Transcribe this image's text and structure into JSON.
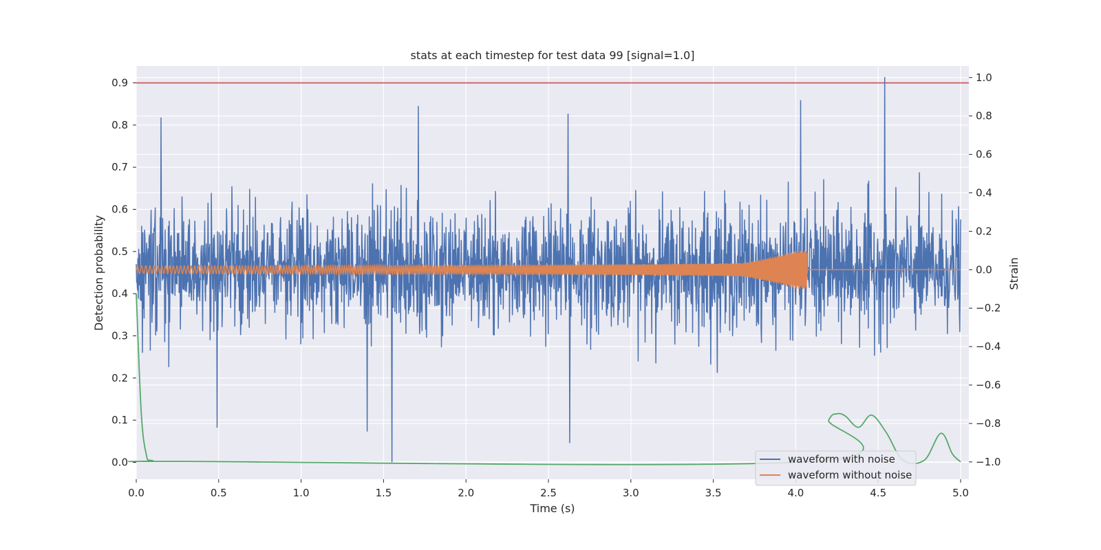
{
  "chart_data": {
    "type": "line",
    "title": "stats at each timestep for test data 99 [signal=1.0]",
    "xlabel": "Time (s)",
    "ylabel": "Detection probability",
    "y2label": "Strain",
    "xlim": [
      0.0,
      5.05
    ],
    "ylim": [
      -0.04,
      0.94
    ],
    "y2lim": [
      -1.09,
      1.06
    ],
    "xticks": [
      "0.0",
      "0.5",
      "1.0",
      "1.5",
      "2.0",
      "2.5",
      "3.0",
      "3.5",
      "4.0",
      "4.5",
      "5.0"
    ],
    "yticks": [
      "0.0",
      "0.1",
      "0.2",
      "0.3",
      "0.4",
      "0.5",
      "0.6",
      "0.7",
      "0.8",
      "0.9"
    ],
    "y2ticks": [
      "−1.0",
      "−0.8",
      "−0.6",
      "−0.4",
      "−0.2",
      "0.0",
      "0.2",
      "0.4",
      "0.6",
      "0.8",
      "1.0"
    ],
    "grid": true,
    "legend_position": "lower-right",
    "threshold": {
      "y": 0.9,
      "color": "#c44e52"
    },
    "series": [
      {
        "name": "waveform with noise",
        "axis": "right",
        "color": "#4c72b0",
        "x_range": [
          0.0,
          5.0
        ],
        "amplitude_typical": 0.4,
        "peaks": [
          {
            "x": 0.15,
            "y": 0.79
          },
          {
            "x": 1.71,
            "y": 0.85
          },
          {
            "x": 4.03,
            "y": 0.88
          },
          {
            "x": 4.54,
            "y": 1.0
          },
          {
            "x": 2.62,
            "y": 0.81
          },
          {
            "x": 1.55,
            "y": -1.0
          },
          {
            "x": 2.63,
            "y": -0.9
          },
          {
            "x": 0.49,
            "y": -0.82
          },
          {
            "x": 1.4,
            "y": -0.84
          }
        ]
      },
      {
        "name": "waveform without noise",
        "axis": "right",
        "color": "#dd8452",
        "x_range": [
          0.0,
          5.0
        ],
        "merger_time": 4.07,
        "amplitude_start": 0.02,
        "amplitude_peak": 0.1
      },
      {
        "name": "",
        "axis": "left",
        "color": "#55a868",
        "points": [
          {
            "x": 0.0,
            "y": 0.4
          },
          {
            "x": 0.03,
            "y": 0.12
          },
          {
            "x": 0.06,
            "y": 0.02
          },
          {
            "x": 0.1,
            "y": 0.004
          },
          {
            "x": 0.3,
            "y": 0.002
          },
          {
            "x": 4.1,
            "y": 0.002
          },
          {
            "x": 4.2,
            "y": 0.1
          },
          {
            "x": 4.25,
            "y": 0.115
          },
          {
            "x": 4.3,
            "y": 0.11
          },
          {
            "x": 4.38,
            "y": 0.083
          },
          {
            "x": 4.46,
            "y": 0.112
          },
          {
            "x": 4.55,
            "y": 0.07
          },
          {
            "x": 4.65,
            "y": 0.005
          },
          {
            "x": 4.78,
            "y": 0.005
          },
          {
            "x": 4.88,
            "y": 0.069
          },
          {
            "x": 4.95,
            "y": 0.02
          },
          {
            "x": 5.0,
            "y": 0.001
          }
        ]
      }
    ]
  }
}
